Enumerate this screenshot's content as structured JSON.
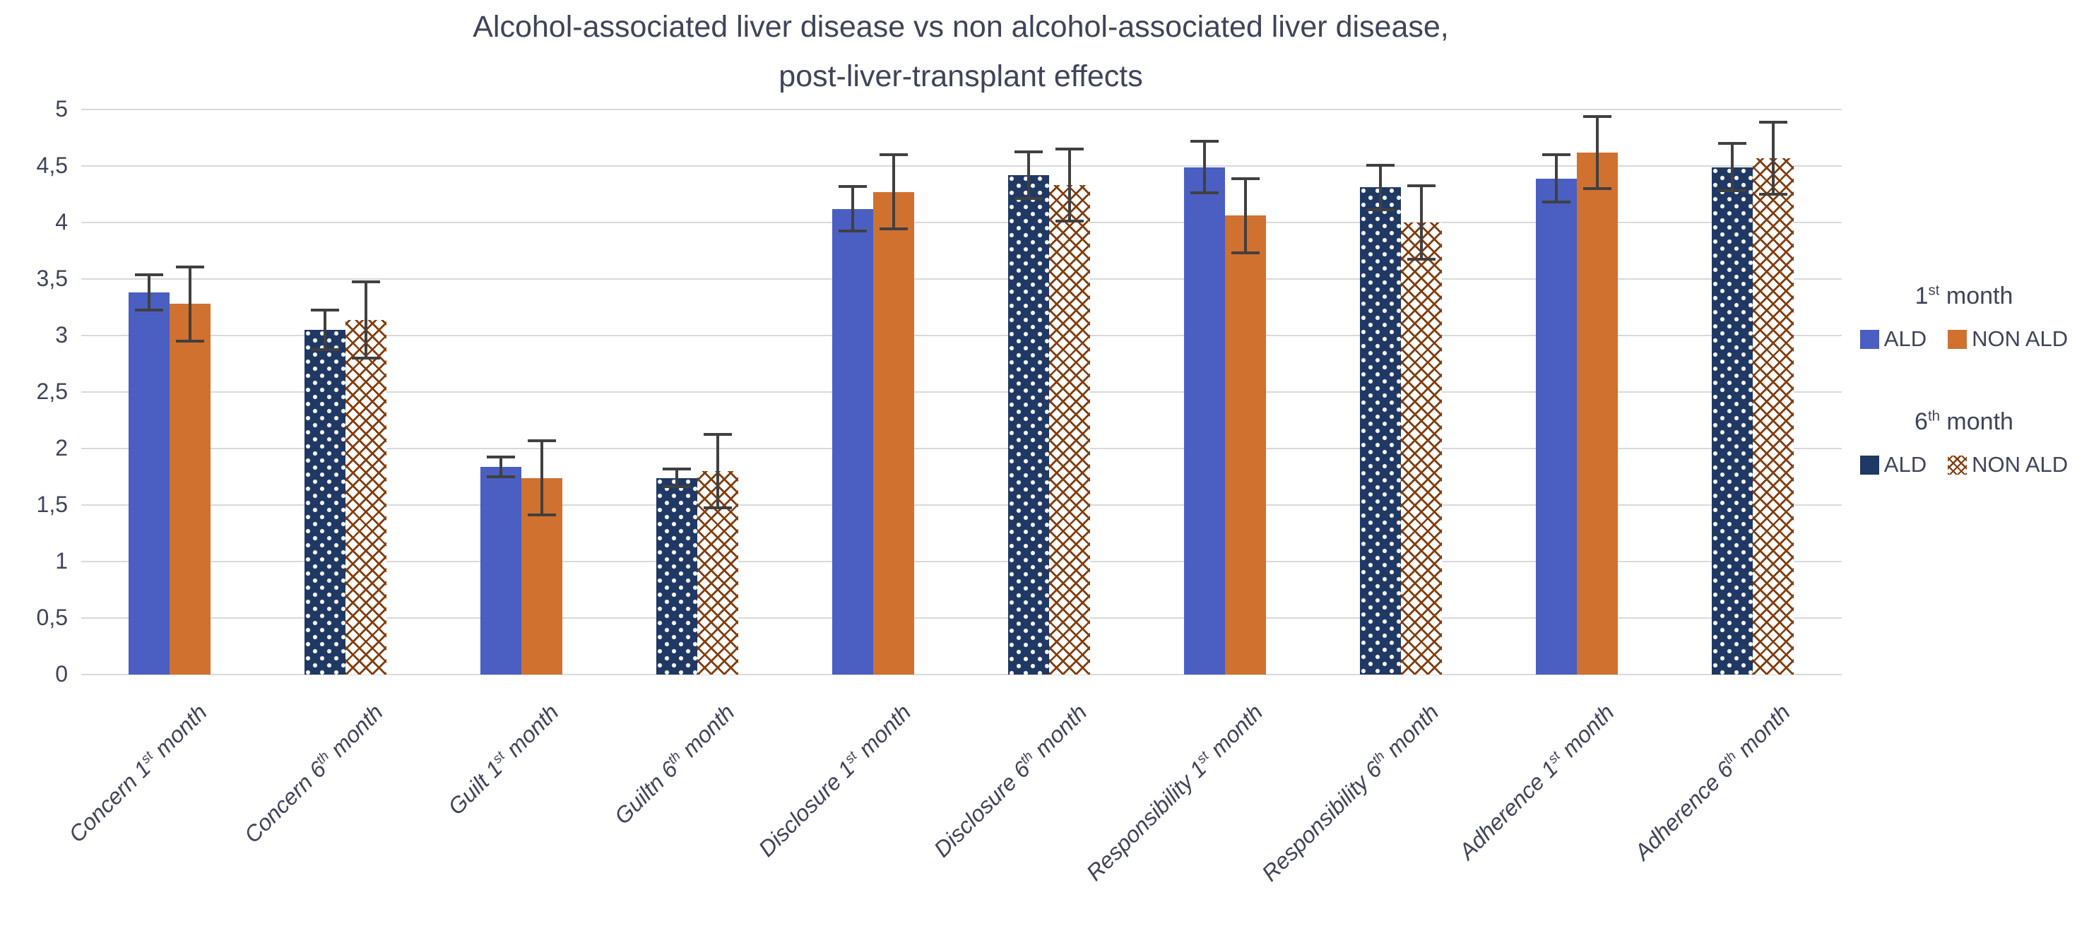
{
  "title": {
    "line1": "Alcohol-associated liver disease vs non alcohol-associated liver disease,",
    "line2": "post-liver-transplant effects"
  },
  "chart_data": {
    "type": "bar",
    "title": "Alcohol-associated liver disease vs non alcohol-associated liver disease, post-liver-transplant effects",
    "categories": [
      "Concern 1st month",
      "Concern 6th month",
      "Guilt 1st month",
      "Guiltn 6th month",
      "Disclosure 1st month",
      "Disclosure 6th month",
      "Responsibility 1st month",
      "Responsibility 6th month",
      "Adherence 1st month",
      "Adherence 6th month"
    ],
    "periods": [
      "1st",
      "6th",
      "1st",
      "6th",
      "1st",
      "6th",
      "1st",
      "6th",
      "1st",
      "6th"
    ],
    "series": [
      {
        "name": "ALD",
        "values": [
          3.38,
          3.05,
          1.84,
          1.74,
          4.12,
          4.42,
          4.49,
          4.31,
          4.39,
          4.49
        ],
        "errors": [
          0.17,
          0.19,
          0.1,
          0.09,
          0.21,
          0.22,
          0.24,
          0.21,
          0.22,
          0.22
        ]
      },
      {
        "name": "NON ALD",
        "values": [
          3.28,
          3.14,
          1.74,
          1.8,
          4.27,
          4.33,
          4.06,
          4.0,
          4.62,
          4.57
        ],
        "errors": [
          0.34,
          0.35,
          0.34,
          0.34,
          0.34,
          0.33,
          0.34,
          0.34,
          0.33,
          0.33
        ]
      }
    ],
    "ylim": [
      0,
      5
    ],
    "ytick_labels": [
      "0",
      "0,5",
      "1",
      "1,5",
      "2",
      "2,5",
      "3",
      "3,5",
      "4",
      "4,5",
      "5"
    ],
    "xlabel": "",
    "ylabel": "",
    "grid": true,
    "error_bars": true,
    "legend_position": "right"
  },
  "legend": {
    "groups": [
      {
        "heading": "1st month",
        "items": [
          {
            "label": "ALD",
            "swatch": "ald1"
          },
          {
            "label": "NON ALD",
            "swatch": "nonald1"
          }
        ]
      },
      {
        "heading": "6th month",
        "items": [
          {
            "label": "ALD",
            "swatch": "ald6"
          },
          {
            "label": "NON ALD",
            "swatch": "nonald6"
          }
        ]
      }
    ]
  },
  "colors": {
    "ald_1st": "#4A5FC1",
    "non_ald_1st": "#D0712F",
    "ald_6th": "#1F3864",
    "non_ald_6th_pattern": "#843C0C",
    "gridline": "#D9D9D9",
    "error_bar": "#404040",
    "text": "#3F4458"
  }
}
